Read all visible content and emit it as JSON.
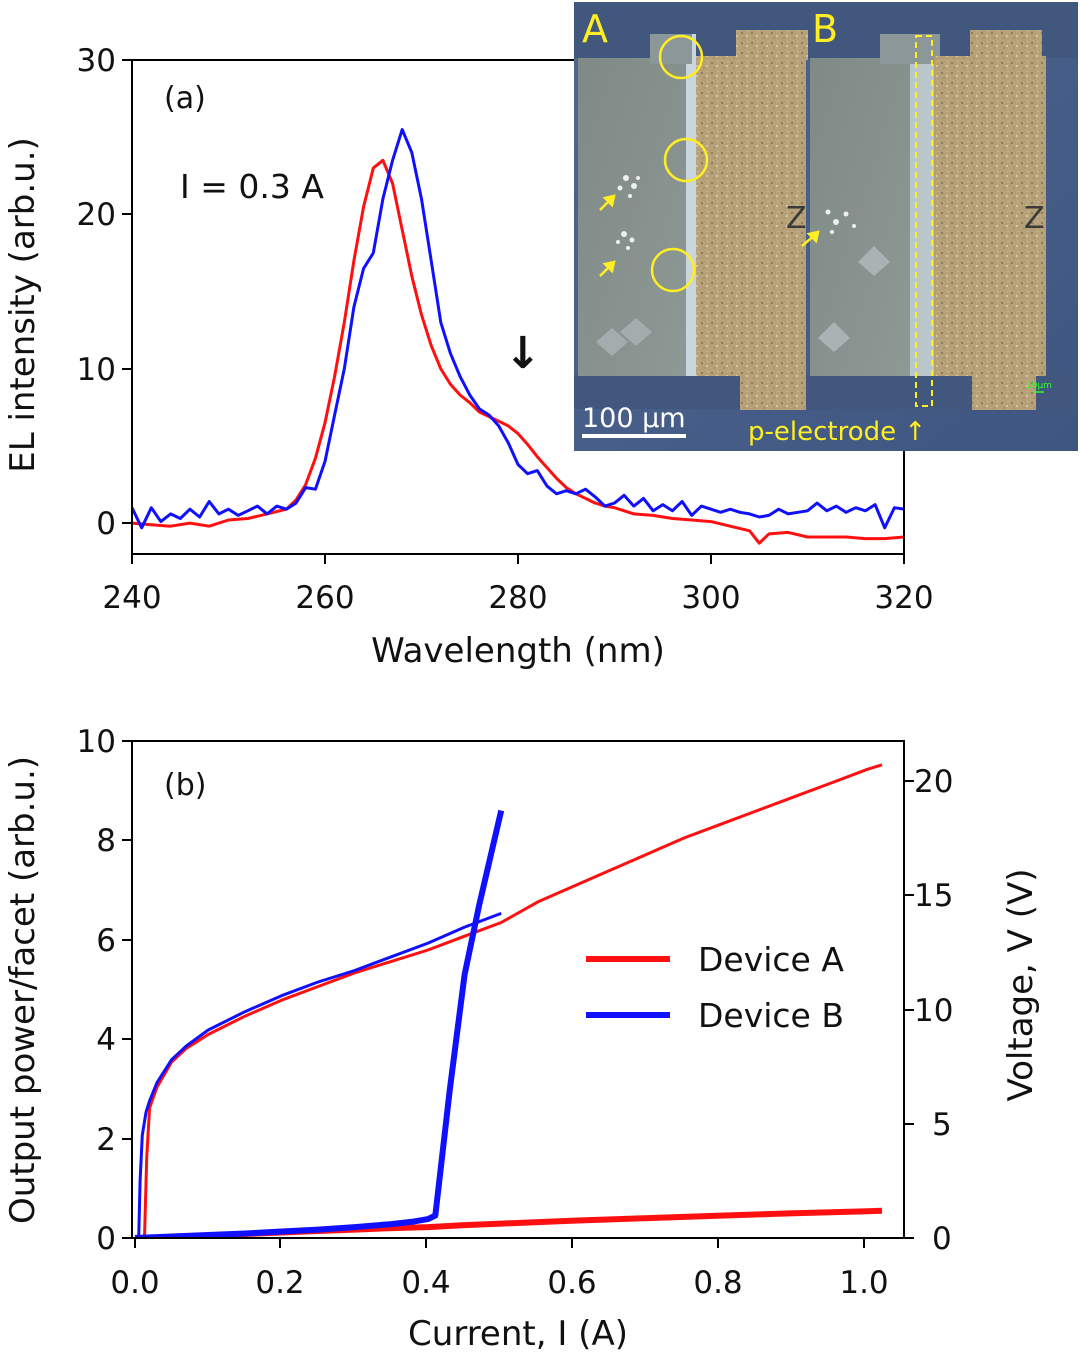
{
  "colors": {
    "device_a": "#ff1010",
    "device_b": "#1010ff",
    "inset_annotation": "#ffee22",
    "arrow": "#ee1111"
  },
  "chart_data": [
    {
      "panel": "(a)",
      "type": "line",
      "title": "",
      "xlabel": "Wavelength (nm)",
      "ylabel": "EL intensity (arb.u.)",
      "xlim": [
        240,
        320
      ],
      "ylim": [
        -2,
        30
      ],
      "xticks": [
        "240",
        "260",
        "280",
        "300",
        "320"
      ],
      "yticks": [
        "0",
        "10",
        "20",
        "30"
      ],
      "annotation": "I = 0.3 A",
      "shoulder_arrow_at_nm": 280.5,
      "shoulder_arrow_glyph": "↓",
      "series": [
        {
          "name": "Device A",
          "color": "#ff1010",
          "x": [
            240,
            242,
            244,
            246,
            248,
            250,
            252,
            254,
            256,
            257,
            258,
            259,
            260,
            261,
            262,
            263,
            264,
            265,
            266,
            267,
            268,
            269,
            270,
            271,
            272,
            273,
            274,
            275,
            276,
            277,
            278,
            279,
            280,
            281,
            282,
            283,
            284,
            285,
            286,
            287,
            288,
            289,
            290,
            292,
            294,
            296,
            298,
            300,
            302,
            304,
            305,
            306,
            308,
            310,
            312,
            314,
            316,
            318,
            320
          ],
          "y": [
            0,
            -0.1,
            -0.2,
            0,
            -0.2,
            0.2,
            0.3,
            0.6,
            0.9,
            1.5,
            2.5,
            4.2,
            6.5,
            9.5,
            13,
            17,
            20.5,
            23,
            23.5,
            22,
            19,
            16,
            13.5,
            11.5,
            10,
            9,
            8.3,
            7.8,
            7.2,
            6.9,
            6.6,
            6.3,
            5.8,
            5.1,
            4.3,
            3.6,
            2.9,
            2.3,
            1.9,
            1.6,
            1.3,
            1.1,
            1,
            0.6,
            0.5,
            0.3,
            0.2,
            0.1,
            -0.2,
            -0.5,
            -1.3,
            -0.7,
            -0.6,
            -0.9,
            -0.9,
            -0.9,
            -1.0,
            -1.0,
            -0.9
          ]
        },
        {
          "name": "Device B",
          "color": "#1010ff",
          "x": [
            240,
            241,
            242,
            243,
            244,
            245,
            246,
            247,
            248,
            249,
            250,
            251,
            252,
            253,
            254,
            255,
            256,
            257,
            258,
            259,
            260,
            261,
            262,
            263,
            264,
            265,
            266,
            267,
            268,
            269,
            270,
            271,
            272,
            273,
            274,
            275,
            276,
            277,
            278,
            279,
            280,
            281,
            282,
            283,
            284,
            285,
            286,
            287,
            288,
            289,
            290,
            291,
            292,
            293,
            294,
            295,
            296,
            297,
            298,
            299,
            300,
            301,
            302,
            303,
            304,
            305,
            306,
            307,
            308,
            309,
            310,
            311,
            312,
            313,
            314,
            315,
            316,
            317,
            318,
            319,
            320
          ],
          "y": [
            1,
            -0.3,
            1,
            0.1,
            0.6,
            0.3,
            0.9,
            0.4,
            1.4,
            0.6,
            0.9,
            0.5,
            0.8,
            1.1,
            0.6,
            1.1,
            0.9,
            1.3,
            2.3,
            2.2,
            4,
            7,
            10,
            14,
            16.5,
            17.5,
            21,
            23.5,
            25.5,
            24,
            21,
            17,
            13,
            11,
            9.5,
            8.3,
            7.4,
            7,
            6.3,
            5.2,
            3.8,
            3.2,
            3.4,
            2.4,
            1.9,
            2.1,
            1.9,
            2.2,
            1.7,
            1.1,
            1.3,
            1.8,
            1.1,
            1.6,
            0.8,
            1.2,
            0.8,
            1.4,
            0.5,
            1.1,
            0.9,
            0.7,
            0.9,
            0.7,
            0.6,
            0.4,
            0.5,
            0.9,
            0.6,
            0.7,
            0.8,
            1.3,
            0.8,
            1.1,
            0.7,
            1.0,
            0.8,
            1.2,
            -0.3,
            1.0,
            0.9
          ]
        }
      ]
    },
    {
      "panel": "(b)",
      "type": "line",
      "title": "",
      "xlabel": "Current, I (A)",
      "ylabel_left": "Output power/facet (arb.u.)",
      "ylabel_right": "Voltage, V (V)",
      "xlim": [
        0,
        1.05
      ],
      "ylim_left": [
        0,
        10
      ],
      "ylim_right": [
        0,
        21.74
      ],
      "xticks": [
        "0.0",
        "0.2",
        "0.4",
        "0.6",
        "0.8",
        "1.0"
      ],
      "yticks_left": [
        "0",
        "2",
        "4",
        "6",
        "8",
        "10"
      ],
      "yticks_right": [
        "0",
        "5",
        "10",
        "15",
        "20"
      ],
      "legend_position": "center-right",
      "legend": [
        "Device A",
        "Device B"
      ],
      "series": [
        {
          "name": "Device A",
          "axis": "left",
          "quantity": "output power",
          "color": "#ff1010",
          "x": [
            0,
            0.05,
            0.1,
            0.15,
            0.2,
            0.25,
            0.3,
            0.35,
            0.4,
            0.45,
            0.5,
            0.6,
            0.7,
            0.8,
            0.9,
            1.0,
            1.02
          ],
          "y": [
            0,
            0.02,
            0.05,
            0.08,
            0.11,
            0.14,
            0.17,
            0.2,
            0.22,
            0.26,
            0.29,
            0.35,
            0.4,
            0.45,
            0.5,
            0.54,
            0.55
          ]
        },
        {
          "name": "Device A",
          "axis": "right",
          "quantity": "voltage",
          "color": "#ff1010",
          "x": [
            0.013,
            0.016,
            0.02,
            0.03,
            0.05,
            0.07,
            0.1,
            0.15,
            0.2,
            0.25,
            0.3,
            0.35,
            0.4,
            0.45,
            0.5,
            0.55,
            0.6,
            0.65,
            0.7,
            0.75,
            0.8,
            0.85,
            0.9,
            0.95,
            1.0,
            1.02
          ],
          "y": [
            0,
            3.5,
            5.7,
            6.6,
            7.7,
            8.3,
            8.9,
            9.7,
            10.4,
            11.0,
            11.6,
            12.1,
            12.6,
            13.2,
            13.8,
            14.7,
            15.4,
            16.1,
            16.8,
            17.5,
            18.1,
            18.7,
            19.3,
            19.9,
            20.5,
            20.7
          ]
        },
        {
          "name": "Device B",
          "axis": "left",
          "quantity": "output power",
          "color": "#1010ff",
          "x": [
            0,
            0.05,
            0.1,
            0.15,
            0.2,
            0.25,
            0.3,
            0.35,
            0.38,
            0.4,
            0.41,
            0.43,
            0.45,
            0.47,
            0.5
          ],
          "y": [
            0,
            0.03,
            0.06,
            0.09,
            0.13,
            0.17,
            0.22,
            0.28,
            0.33,
            0.38,
            0.45,
            3.0,
            5.3,
            6.7,
            8.6
          ]
        },
        {
          "name": "Device B",
          "axis": "right",
          "quantity": "voltage",
          "color": "#1010ff",
          "x": [
            0.005,
            0.007,
            0.01,
            0.015,
            0.02,
            0.03,
            0.05,
            0.07,
            0.1,
            0.15,
            0.2,
            0.25,
            0.3,
            0.35,
            0.4,
            0.45,
            0.5
          ],
          "y": [
            0,
            2.5,
            4.5,
            5.5,
            6.0,
            6.8,
            7.8,
            8.4,
            9.1,
            9.9,
            10.6,
            11.2,
            11.7,
            12.3,
            12.9,
            13.6,
            14.2
          ]
        }
      ]
    }
  ],
  "inset": {
    "label_a": "A",
    "label_b": "B",
    "scale_bar": "100 µm",
    "electrode_label": "p-electrode ↑",
    "mini_scale": "10µm",
    "etch_mark": "Z"
  }
}
